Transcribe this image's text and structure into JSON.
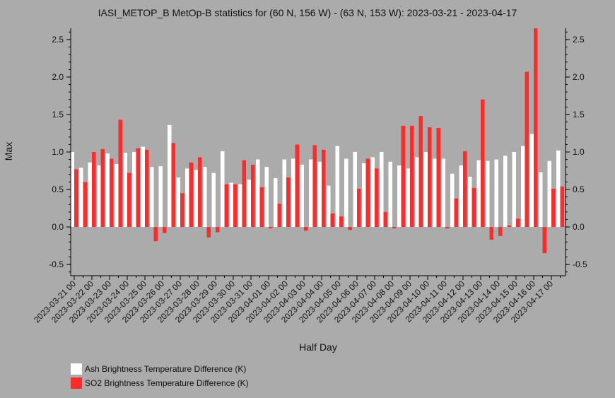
{
  "chart_data": {
    "type": "bar",
    "title": "IASI_METOP_B MetOp-B statistics for (60 N, 156 W) - (63 N, 153 W): 2023-03-21 - 2023-04-17",
    "xlabel": "Half Day",
    "ylabel": "Max",
    "ylim": [
      -0.65,
      2.65
    ],
    "yticks": [
      -0.5,
      0.0,
      0.5,
      1.0,
      1.5,
      2.0,
      2.5
    ],
    "ytick_labels": [
      "-0.5",
      "0.0",
      "0.5",
      "1.0",
      "1.5",
      "2.0",
      "2.5"
    ],
    "xtick_labels": [
      "2023-03-21 00",
      "2023-03-22 00",
      "2023-03-23 00",
      "2023-03-24 00",
      "2023-03-25 00",
      "2023-03-26 00",
      "2023-03-27 00",
      "2023-03-28 00",
      "2023-03-29 00",
      "2023-03-30 00",
      "2023-03-31 00",
      "2023-04-01 00",
      "2023-04-02 00",
      "2023-04-03 00",
      "2023-04-04 00",
      "2023-04-05 00",
      "2023-04-06 00",
      "2023-04-07 00",
      "2023-04-08 00",
      "2023-04-09 00",
      "2023-04-10 00",
      "2023-04-11 00",
      "2023-04-12 00",
      "2023-04-13 00",
      "2023-04-14 00",
      "2023-04-15 00",
      "2023-04-16 00",
      "2023-04-17 00"
    ],
    "series": [
      {
        "name": "Ash Brightness Temperature Difference (K)",
        "color": "#ffffff",
        "values": [
          1.0,
          0.79,
          0.86,
          0.82,
          0.98,
          0.84,
          0.99,
          1.0,
          1.07,
          0.8,
          0.81,
          1.36,
          0.66,
          0.78,
          0.76,
          0.8,
          0.72,
          1.01,
          0.59,
          0.57,
          0.63,
          0.9,
          0.8,
          0.65,
          0.9,
          0.91,
          0.83,
          0.9,
          0.87,
          0.55,
          1.08,
          0.91,
          1.0,
          0.85,
          0.93,
          1.0,
          0.87,
          0.82,
          0.78,
          0.93,
          1.0,
          0.91,
          0.91,
          0.71,
          0.82,
          0.67,
          0.89,
          0.88,
          0.9,
          0.95,
          1.0,
          1.08,
          1.24,
          0.73,
          0.88,
          1.02
        ]
      },
      {
        "name": "SO2 Brightness Temperature Difference (K)",
        "color": "#ff2a2a",
        "values": [
          0.77,
          0.6,
          1.0,
          1.04,
          0.91,
          1.43,
          0.72,
          1.05,
          1.03,
          -0.19,
          -0.08,
          1.12,
          0.45,
          0.86,
          0.93,
          -0.14,
          -0.07,
          0.57,
          0.57,
          0.89,
          0.83,
          0.53,
          -0.02,
          0.31,
          0.66,
          1.1,
          -0.05,
          1.09,
          1.03,
          0.18,
          0.14,
          -0.04,
          0.51,
          0.91,
          0.78,
          0.2,
          -0.02,
          1.35,
          1.35,
          1.48,
          1.33,
          1.32,
          -0.02,
          0.38,
          1.01,
          0.52,
          1.7,
          -0.17,
          -0.12,
          0.02,
          0.11,
          2.07,
          2.65,
          -0.35,
          0.51,
          0.54
        ]
      }
    ],
    "grid": false,
    "legend_position": "bottom-left"
  }
}
